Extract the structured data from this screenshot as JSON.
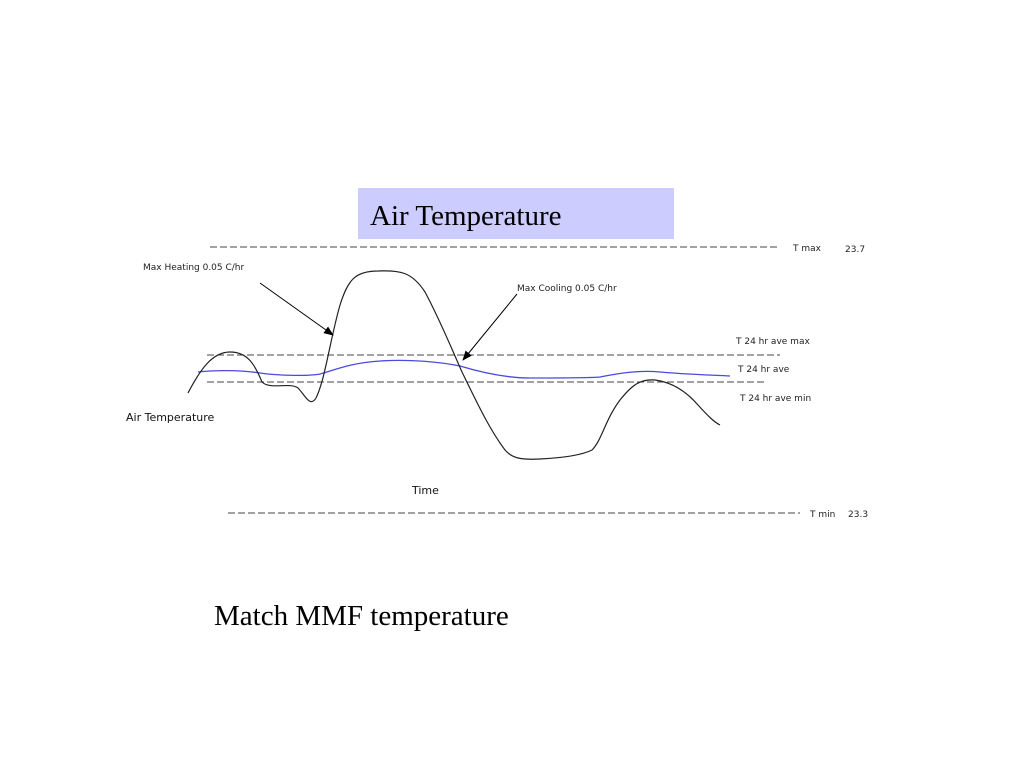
{
  "title": "Air Temperature",
  "lines": {
    "t_max": {
      "label": "T max",
      "value": 23.7
    },
    "t_ave_max": {
      "label": "T 24 hr ave max"
    },
    "t_ave": {
      "label": "T 24 hr ave"
    },
    "t_ave_min": {
      "label": "T 24 hr ave min"
    },
    "t_min": {
      "label": "T min",
      "value": 23.3
    }
  },
  "annotations": {
    "heating": "Max Heating 0.05 C/hr",
    "cooling": "Max Cooling 0.05 C/hr"
  },
  "axes": {
    "y": "Air Temperature",
    "x": "Time"
  },
  "caption": "Match MMF temperature"
}
